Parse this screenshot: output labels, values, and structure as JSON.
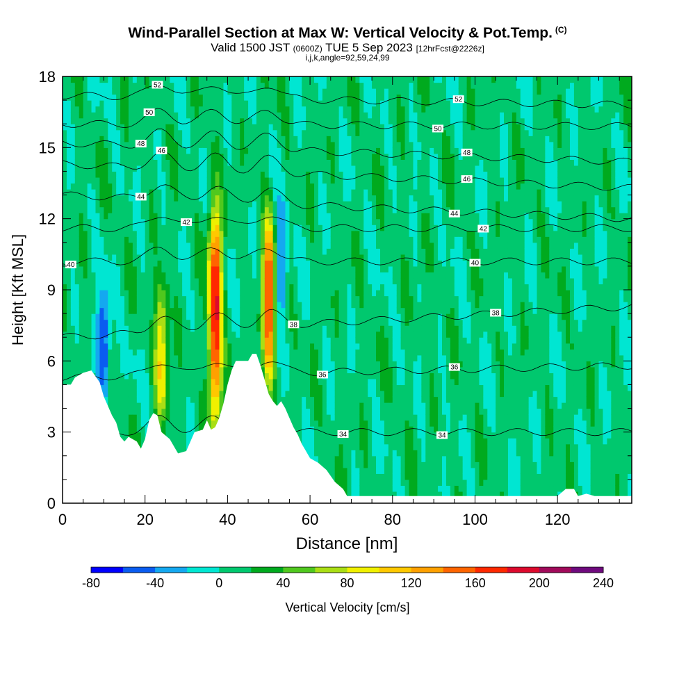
{
  "titles": {
    "main": "Wind-Parallel Section at Max W: Vertical Velocity & Pot.Temp.",
    "main_tag": "(C)",
    "valid_prefix": "Valid 1500 JST",
    "valid_z": "(0600Z)",
    "valid_date": "TUE 5 Sep 2023",
    "forecast": "[12hrFcst@2226z]",
    "indices": "i,j,k,angle=92,59,24,99"
  },
  "chart_data": {
    "type": "heatmap",
    "xlabel": "Distance [nm]",
    "ylabel": "Height [Kft MSL]",
    "xlim": [
      0,
      138
    ],
    "ylim": [
      0,
      18
    ],
    "xticks": [
      0,
      20,
      40,
      60,
      80,
      100,
      120
    ],
    "yticks": [
      0,
      3,
      6,
      9,
      12,
      15,
      18
    ],
    "colorbar": {
      "label": "Vertical Velocity [cm/s]",
      "levels": [
        -80,
        -60,
        -40,
        -20,
        0,
        20,
        40,
        60,
        80,
        100,
        120,
        140,
        160,
        180,
        200,
        220,
        240
      ],
      "tick_labels": [
        "-80",
        "-40",
        "0",
        "40",
        "80",
        "120",
        "160",
        "200",
        "240"
      ],
      "colors": [
        "#0000ff",
        "#0a5cf0",
        "#14a8f0",
        "#00e6d2",
        "#00c86e",
        "#00aa1e",
        "#50c81e",
        "#aade14",
        "#f0f000",
        "#ffc800",
        "#ffa000",
        "#ff6400",
        "#ff2800",
        "#dc0a2d",
        "#a00a5a",
        "#6e0a7d"
      ]
    },
    "updrafts": [
      {
        "x": 24,
        "z_bottom": 3.5,
        "z_top": 9.5,
        "w_max": 90
      },
      {
        "x": 37,
        "z_bottom": 3.2,
        "z_top": 12.6,
        "w_max": 180
      },
      {
        "x": 50,
        "z_bottom": 5.0,
        "z_top": 12.2,
        "w_max": 150
      }
    ],
    "downdrafts": [
      {
        "x": 10,
        "z_bottom": 4.5,
        "z_top": 9.0,
        "w_min": -75
      },
      {
        "x": 53,
        "z_bottom": 8.0,
        "z_top": 12.5,
        "w_min": -60
      }
    ],
    "theta_contours": [
      {
        "label": "34",
        "left": 3.0,
        "right": 3.0,
        "label_x": 68,
        "label_x2": 92
      },
      {
        "label": "36",
        "left": 5.3,
        "right": 5.8,
        "label_x": 63,
        "label_x2": 95
      },
      {
        "label": "38",
        "left": 7.0,
        "right": 8.3,
        "label_x": 56,
        "label_x2": 105
      },
      {
        "label": "40",
        "left": 10.2,
        "right": 10.2,
        "label_x": 2,
        "label_x2": 100
      },
      {
        "label": "42",
        "left": 11.6,
        "right": 11.6,
        "label_x": 30,
        "label_x2": 102
      },
      {
        "label": "44",
        "left": 13.0,
        "right": 12.0,
        "label_x": 19,
        "label_x2": 95
      },
      {
        "label": "46",
        "left": 14.3,
        "right": 13.3,
        "label_x": 24,
        "label_x2": 98
      },
      {
        "label": "48",
        "left": 15.2,
        "right": 14.4,
        "label_x": 19,
        "label_x2": 98
      },
      {
        "label": "50",
        "left": 16.0,
        "right": 15.9,
        "label_x": 21,
        "label_x2": 91
      },
      {
        "label": "52",
        "left": 17.2,
        "right": 16.8,
        "label_x": 23,
        "label_x2": 96
      }
    ],
    "terrain": [
      [
        0,
        5.0
      ],
      [
        2,
        5.0
      ],
      [
        3,
        5.3
      ],
      [
        5,
        5.5
      ],
      [
        7,
        5.6
      ],
      [
        9,
        5.1
      ],
      [
        10,
        4.5
      ],
      [
        11,
        4.1
      ],
      [
        12,
        3.7
      ],
      [
        13,
        3.4
      ],
      [
        14,
        2.8
      ],
      [
        15,
        2.6
      ],
      [
        16,
        2.8
      ],
      [
        18,
        2.6
      ],
      [
        19,
        2.3
      ],
      [
        20,
        2.7
      ],
      [
        21,
        3.5
      ],
      [
        22,
        3.8
      ],
      [
        23,
        3.7
      ],
      [
        24,
        3.0
      ],
      [
        26,
        2.7
      ],
      [
        27,
        2.4
      ],
      [
        28,
        2.1
      ],
      [
        30,
        2.2
      ],
      [
        31,
        2.6
      ],
      [
        32,
        3.0
      ],
      [
        34,
        3.1
      ],
      [
        35,
        3.5
      ],
      [
        36,
        3.1
      ],
      [
        37,
        3.2
      ],
      [
        38,
        3.6
      ],
      [
        39,
        4.2
      ],
      [
        40,
        5.0
      ],
      [
        41,
        5.6
      ],
      [
        42,
        6.0
      ],
      [
        45,
        6.0
      ],
      [
        46,
        6.3
      ],
      [
        47,
        6.3
      ],
      [
        48,
        5.8
      ],
      [
        49,
        5.2
      ],
      [
        50,
        4.6
      ],
      [
        51,
        4.3
      ],
      [
        52,
        4.1
      ],
      [
        53,
        4.3
      ],
      [
        54,
        4.0
      ],
      [
        55,
        3.6
      ],
      [
        56,
        3.2
      ],
      [
        57,
        2.9
      ],
      [
        58,
        2.5
      ],
      [
        59,
        2.2
      ],
      [
        60,
        1.9
      ],
      [
        62,
        1.7
      ],
      [
        64,
        1.4
      ],
      [
        66,
        0.9
      ],
      [
        68,
        0.6
      ],
      [
        69,
        0.3
      ],
      [
        70,
        0.3
      ],
      [
        80,
        0.3
      ],
      [
        90,
        0.3
      ],
      [
        100,
        0.3
      ],
      [
        110,
        0.3
      ],
      [
        120,
        0.3
      ],
      [
        122,
        0.6
      ],
      [
        124,
        0.6
      ],
      [
        125,
        0.3
      ],
      [
        127,
        0.4
      ],
      [
        129,
        0.3
      ],
      [
        131,
        0.3
      ],
      [
        132,
        0.3
      ],
      [
        138,
        0.3
      ]
    ]
  }
}
